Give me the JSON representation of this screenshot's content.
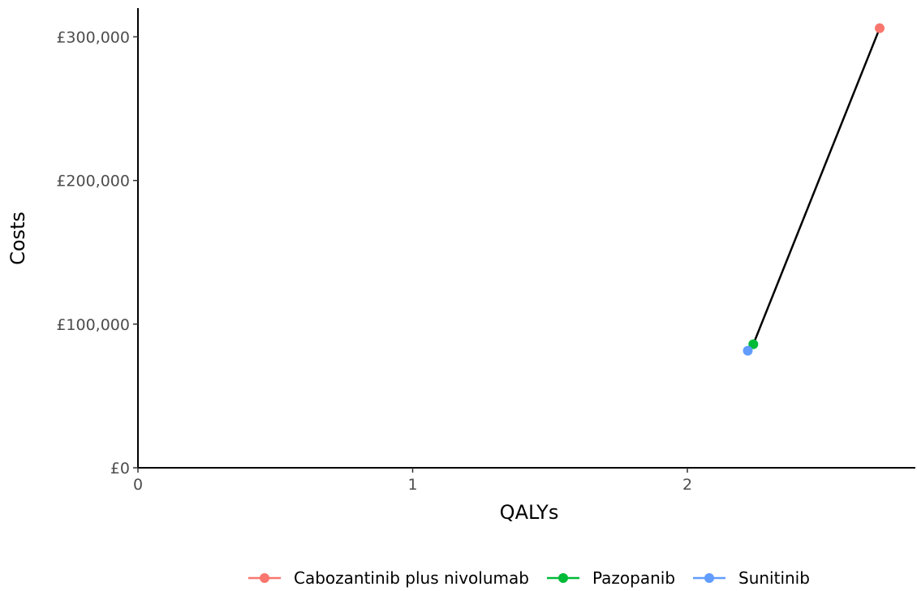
{
  "chart_data": {
    "type": "scatter",
    "title": "",
    "xlabel": "QALYs",
    "ylabel": "Costs",
    "xlim": [
      0,
      2.83
    ],
    "ylim": [
      0,
      320000
    ],
    "xticks": [
      {
        "value": 0,
        "label": "0"
      },
      {
        "value": 1,
        "label": "1"
      },
      {
        "value": 2,
        "label": "2"
      }
    ],
    "yticks": [
      {
        "value": 0,
        "label": "£0"
      },
      {
        "value": 100000,
        "label": "£100,000"
      },
      {
        "value": 200000,
        "label": "£200,000"
      },
      {
        "value": 300000,
        "label": "£300,000"
      }
    ],
    "grid": false,
    "legend_position": "bottom",
    "series": [
      {
        "name": "Cabozantinib plus nivolumab",
        "color": "#F8766D",
        "x": 2.7,
        "y": 306000
      },
      {
        "name": "Pazopanib",
        "color": "#00BA38",
        "x": 2.24,
        "y": 86000
      },
      {
        "name": "Sunitinib",
        "color": "#619CFF",
        "x": 2.22,
        "y": 81500
      }
    ],
    "frontier": {
      "color": "#000000",
      "order": [
        "Sunitinib",
        "Pazopanib",
        "Cabozantinib plus nivolumab"
      ]
    }
  }
}
